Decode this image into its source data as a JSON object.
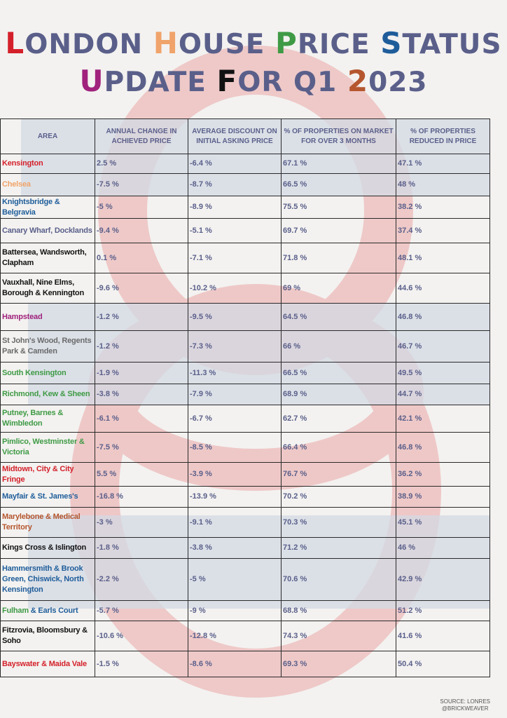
{
  "title": {
    "line1": [
      {
        "cap": "L",
        "rest": "ONDON ",
        "cap_color": "#d4202a"
      },
      {
        "cap": "H",
        "rest": "OUSE ",
        "cap_color": "#f0a36a"
      },
      {
        "cap": "P",
        "rest": "RICE ",
        "cap_color": "#3f9a45"
      },
      {
        "cap": "S",
        "rest": "TATUS",
        "cap_color": "#1f5d9a"
      }
    ],
    "line2": [
      {
        "cap": "U",
        "rest": "PDATE ",
        "cap_color": "#a0227d"
      },
      {
        "cap": "F",
        "rest": "OR Q1 ",
        "cap_color": "#111111"
      },
      {
        "cap": "2",
        "rest": "023",
        "cap_color": "#b5562e"
      }
    ],
    "text_color": "#5a5f8a"
  },
  "table": {
    "headers": [
      "AREA",
      "ANNUAL CHANGE IN ACHIEVED PRICE",
      "AVERAGE DISCOUNT ON INITIAL ASKING PRICE",
      "% OF PROPERTIES ON MARKET FOR OVER 3 MONTHS",
      "% OF PROPERTIES REDUCED IN PRICE"
    ],
    "rows": [
      {
        "area": "Kensington",
        "color": "#d4202a",
        "annual_change": "2.5 %",
        "avg_discount": "-6.4 %",
        "on_market_3m": "67.1 %",
        "reduced": "47.1 %"
      },
      {
        "area": "Chelsea",
        "color": "#f0a36a",
        "annual_change": "-7.5 %",
        "avg_discount": "-8.7 %",
        "on_market_3m": "66.5 %",
        "reduced": "48 %"
      },
      {
        "area": "Knightsbridge & Belgravia",
        "color": "#1f5d9a",
        "annual_change": "-5 %",
        "avg_discount": "-8.9 %",
        "on_market_3m": "75.5 %",
        "reduced": "38.2 %"
      },
      {
        "area": "Canary Wharf, Docklands",
        "color": "#5a5f8a",
        "annual_change": "-9.4 %",
        "avg_discount": "-5.1 %",
        "on_market_3m": "69.7 %",
        "reduced": "37.4 %"
      },
      {
        "area": "Battersea, Wandsworth, Clapham",
        "color": "#111111",
        "annual_change": "0.1 %",
        "avg_discount": "-7.1 %",
        "on_market_3m": "71.8 %",
        "reduced": "48.1 %"
      },
      {
        "area": "Vauxhall, Nine Elms, Borough & Kennington",
        "color": "#111111",
        "annual_change": "-9.6 %",
        "avg_discount": "-10.2 %",
        "on_market_3m": "69 %",
        "reduced": "44.6 %"
      },
      {
        "area": "Hampstead",
        "color": "#a0227d",
        "annual_change": "-1.2 %",
        "avg_discount": "-9.5 %",
        "on_market_3m": "64.5 %",
        "reduced": "46.8 %"
      },
      {
        "area": "St John's Wood, Regents Park & Camden",
        "color": "#6a6a6a",
        "annual_change": "-1.2 %",
        "avg_discount": "-7.3 %",
        "on_market_3m": "66 %",
        "reduced": "46.7 %"
      },
      {
        "area": "South Kensington",
        "color": "#3f9a45",
        "annual_change": "-1.9 %",
        "avg_discount": "-11.3 %",
        "on_market_3m": "66.5 %",
        "reduced": "49.5 %"
      },
      {
        "area": "Richmond, Kew & Sheen",
        "color": "#3f9a45",
        "annual_change": "-3.8 %",
        "avg_discount": "-7.9 %",
        "on_market_3m": "68.9 %",
        "reduced": "44.7 %"
      },
      {
        "area": "Putney, Barnes & Wimbledon",
        "color": "#3f9a45",
        "annual_change": "-6.1 %",
        "avg_discount": "-6.7 %",
        "on_market_3m": "62.7 %",
        "reduced": "42.1 %"
      },
      {
        "area": "Pimlico, Westminster & Victoria",
        "color": "#3f9a45",
        "annual_change": "-7.5 %",
        "avg_discount": "-8.5 %",
        "on_market_3m": "66.4 %",
        "reduced": "46.8 %"
      },
      {
        "area": "Midtown, City & City Fringe",
        "color": "#d4202a",
        "annual_change": "5.5 %",
        "avg_discount": "-3.9 %",
        "on_market_3m": "76.7 %",
        "reduced": "36.2 %"
      },
      {
        "area": "Mayfair & St. James's",
        "color": "#1f5d9a",
        "annual_change": "-16.8 %",
        "avg_discount": "-13.9 %",
        "on_market_3m": "70.2 %",
        "reduced": "38.9 %"
      },
      {
        "area": "Marylebone & Medical Territory",
        "color": "#b5562e",
        "annual_change": "-3 %",
        "avg_discount": "-9.1 %",
        "on_market_3m": "70.3 %",
        "reduced": "45.1 %"
      },
      {
        "area": "Kings Cross & Islington",
        "color": "#111111",
        "annual_change": "-1.8 %",
        "avg_discount": "-3.8 %",
        "on_market_3m": "71.2 %",
        "reduced": "46 %"
      },
      {
        "area": "Hammersmith & Brook Green, Chiswick, North Kensington",
        "color": "#1f5d9a",
        "annual_change": "-2.2 %",
        "avg_discount": "-5 %",
        "on_market_3m": "70.6 %",
        "reduced": "42.9 %"
      },
      {
        "area_parts": [
          {
            "text": "Fulham",
            "color": "#3f9a45"
          },
          {
            "text": " & Earls Court",
            "color": "#1f5d9a"
          }
        ],
        "area": "Fulham & Earls Court",
        "color": "#1f5d9a",
        "annual_change": "-5.7 %",
        "avg_discount": "-9 %",
        "on_market_3m": "68.8 %",
        "reduced": "51.2 %"
      },
      {
        "area": "Fitzrovia, Bloomsbury & Soho",
        "color": "#111111",
        "annual_change": "-10.6 %",
        "avg_discount": "-12.8 %",
        "on_market_3m": "74.3 %",
        "reduced": "41.6 %"
      },
      {
        "area": "Bayswater & Maida Vale",
        "color": "#d4202a",
        "annual_change": "-1.5 %",
        "avg_discount": "-8.6 %",
        "on_market_3m": "69.3 %",
        "reduced": "50.4 %"
      }
    ]
  },
  "footer": {
    "source": "SOURCE: LONRES",
    "handle": "@BRICKWEAVER"
  },
  "colors": {
    "background": "#f3f2f0",
    "value_text": "#5a5f8a",
    "ring": "#e9a0a0",
    "band": "#d6dce6",
    "border": "#2a2a2a"
  }
}
